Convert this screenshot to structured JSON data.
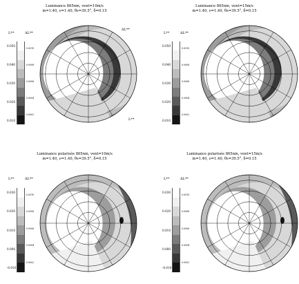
{
  "colors": {
    "grid": "#000000",
    "background": "#ffffff"
  },
  "chart_data": [
    {
      "type": "heatmap",
      "subtype": "polar",
      "title": "Luminance 865nm, vent=10m/s",
      "subtitle": "m=1.40, ν=1.40, θs=39.5°, δ=0.15",
      "legend_left_title": "L**",
      "legend_right_title": "ΔL**",
      "legend_ticks": [
        "0.050",
        "0.040",
        "0.030",
        "0.020",
        "0.010"
      ],
      "legend_colors": [
        "#ffffff",
        "#f0f0f0",
        "#d8d8d8",
        "#bcbcbc",
        "#9d9d9d",
        "#7c7c7c",
        "#5a5a5a",
        "#383838",
        "#151515"
      ],
      "legend_delta_ticks": [
        "0.0010",
        "0.0008",
        "0.0006",
        "0.0004",
        "0.0002"
      ],
      "corner_label": "ΔL**",
      "bottom_label": "L**",
      "zenith_rings_deg": [
        20,
        40,
        60,
        80
      ],
      "azimuth_step_deg": 30,
      "feature": "solar glint arc",
      "vmin": 0.0,
      "vmax": 0.05
    },
    {
      "type": "heatmap",
      "subtype": "polar",
      "title": "Luminance 865nm, vent=15m/s",
      "subtitle": "m=1.40, ν=1.40, θs=39.5°, δ=0.15",
      "legend_left_title": "L**",
      "legend_right_title": "ΔL**",
      "legend_ticks": [
        "0.050",
        "0.040",
        "0.030",
        "0.020",
        "0.010"
      ],
      "legend_colors": [
        "#ffffff",
        "#f0f0f0",
        "#d8d8d8",
        "#bcbcbc",
        "#9d9d9d",
        "#7c7c7c",
        "#5a5a5a",
        "#383838",
        "#151515"
      ],
      "legend_delta_ticks": [
        "0.0010",
        "0.0008",
        "0.0006",
        "0.0004",
        "0.0002"
      ],
      "zenith_rings_deg": [
        20,
        40,
        60,
        80
      ],
      "azimuth_step_deg": 30,
      "feature": "solar glint arc",
      "vmin": 0.0,
      "vmax": 0.05
    },
    {
      "type": "heatmap",
      "subtype": "polar",
      "title": "Luminance polarisée 865nm, vent=10m/s",
      "subtitle": "m=1.40, ν=1.40, θs=39.5°, δ=0.15",
      "legend_left_title": "L**",
      "legend_right_title": "ΔL**",
      "legend_ticks": [
        "0.030",
        "0.020",
        "0.010",
        "0.000",
        "-0.010"
      ],
      "legend_colors": [
        "#ffffff",
        "#f0f0f0",
        "#d8d8d8",
        "#bcbcbc",
        "#9d9d9d",
        "#7c7c7c",
        "#5a5a5a",
        "#383838",
        "#151515"
      ],
      "legend_delta_ticks": [
        "0.0010",
        "0.0008",
        "0.0006",
        "0.0004",
        "0.0002"
      ],
      "zenith_rings_deg": [
        20,
        40,
        60,
        80
      ],
      "azimuth_step_deg": 30,
      "feature": "polarized glint band",
      "vmin": -0.01,
      "vmax": 0.03
    },
    {
      "type": "heatmap",
      "subtype": "polar",
      "title": "Luminance polarisée 865nm, vent=15m/s",
      "subtitle": "m=1.40, ν=1.40, θs=39.5°, δ=0.15",
      "legend_left_title": "L**",
      "legend_right_title": "ΔL**",
      "legend_ticks": [
        "0.030",
        "0.020",
        "0.010",
        "0.000",
        "-0.010"
      ],
      "legend_colors": [
        "#ffffff",
        "#f0f0f0",
        "#d8d8d8",
        "#bcbcbc",
        "#9d9d9d",
        "#7c7c7c",
        "#5a5a5a",
        "#383838",
        "#151515"
      ],
      "legend_delta_ticks": [
        "0.0010",
        "0.0008",
        "0.0006",
        "0.0004",
        "0.0002"
      ],
      "zenith_rings_deg": [
        20,
        40,
        60,
        80
      ],
      "azimuth_step_deg": 30,
      "feature": "polarized glint band",
      "vmin": -0.01,
      "vmax": 0.03
    }
  ]
}
